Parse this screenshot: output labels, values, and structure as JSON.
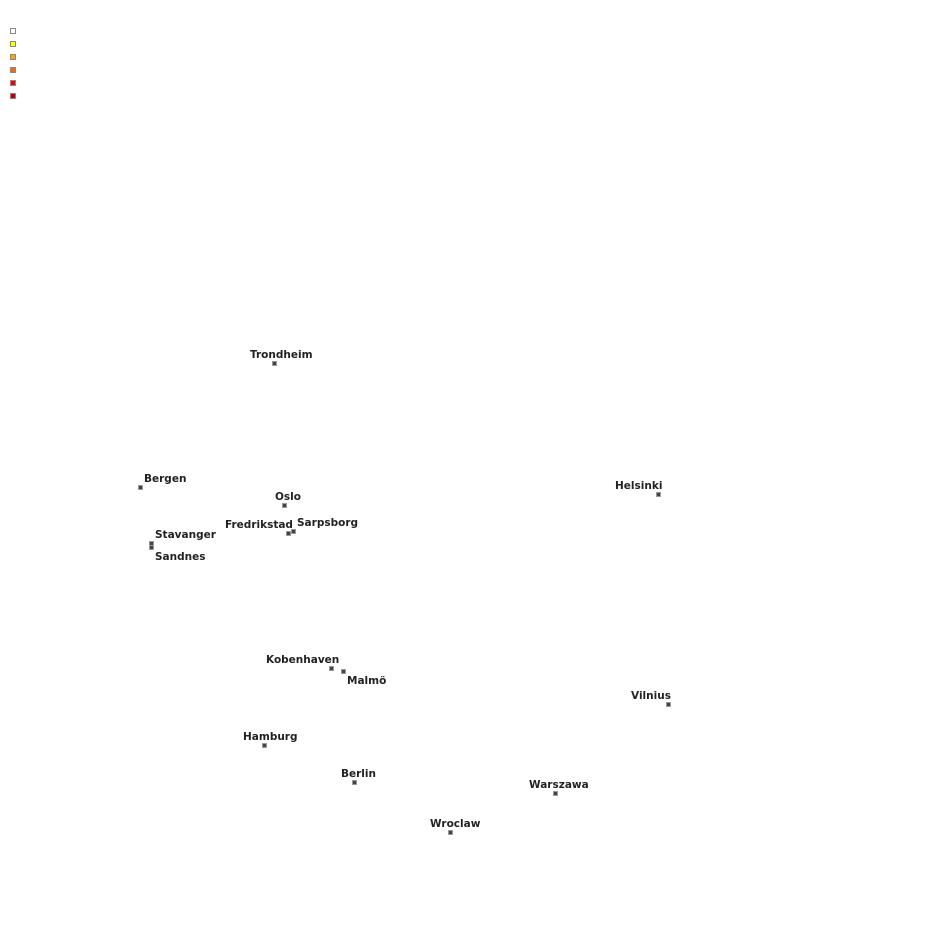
{
  "legend": {
    "colors": [
      "#ffffff",
      "#ffff00",
      "#ffa500",
      "#ff6600",
      "#ff0000",
      "#c00000"
    ]
  },
  "cities": {
    "trondheim": "Trondheim",
    "bergen": "Bergen",
    "oslo": "Oslo",
    "fredrikstad": "Fredrikstad",
    "sarpsborg": "Sarpsborg",
    "stavanger": "Stavanger",
    "sandnes": "Sandnes",
    "helsinki": "Helsinki",
    "kobenhaven": "Kobenhaven",
    "malmo": "Malmö",
    "vilnius": "Vilnius",
    "hamburg": "Hamburg",
    "berlin": "Berlin",
    "warszawa": "Warszawa",
    "wroclaw": "Wroclaw"
  },
  "marker_color": "#444444"
}
